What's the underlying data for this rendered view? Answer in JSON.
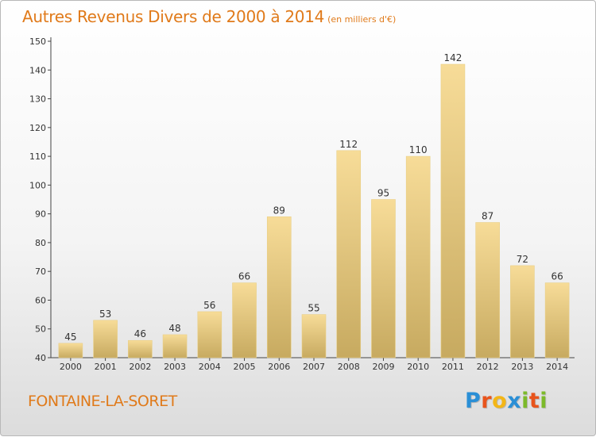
{
  "title": "Autres Revenus Divers de 2000 à 2014",
  "subtitle": "(en milliers d'€)",
  "commune": "FONTAINE-LA-SORET",
  "logo": {
    "text": "Proxiti",
    "letters": [
      {
        "ch": "P",
        "color": "#2a8fd6"
      },
      {
        "ch": "r",
        "color": "#e8541c"
      },
      {
        "ch": "o",
        "color": "#f3b617"
      },
      {
        "ch": "x",
        "color": "#2a8fd6"
      },
      {
        "ch": "i",
        "color": "#7cba2a"
      },
      {
        "ch": "t",
        "color": "#e8541c"
      },
      {
        "ch": "i",
        "color": "#7cba2a"
      }
    ]
  },
  "colors": {
    "title": "#e07a1a",
    "bar_light": "#f7dc98",
    "bar_dark": "#c7aa60",
    "axis": "#444444"
  },
  "chart_data": {
    "type": "bar",
    "categories": [
      "2000",
      "2001",
      "2002",
      "2003",
      "2004",
      "2005",
      "2006",
      "2007",
      "2008",
      "2009",
      "2010",
      "2011",
      "2012",
      "2013",
      "2014"
    ],
    "values": [
      45,
      53,
      46,
      48,
      56,
      66,
      89,
      55,
      112,
      95,
      110,
      142,
      87,
      72,
      66
    ],
    "title": "Autres Revenus Divers de 2000 à 2014",
    "xlabel": "",
    "ylabel": "",
    "ylim": [
      40,
      150
    ],
    "yticks": [
      40,
      50,
      60,
      70,
      80,
      90,
      100,
      110,
      120,
      130,
      140,
      150
    ],
    "grid": false,
    "data_labels": true
  }
}
